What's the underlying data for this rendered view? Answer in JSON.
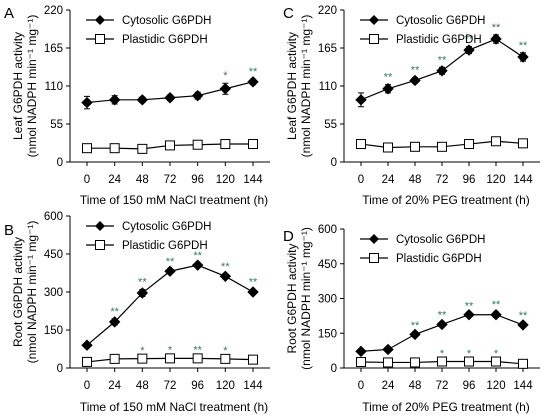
{
  "chart_data": [
    {
      "panel": "A",
      "type": "line",
      "x": [
        "0",
        "24",
        "48",
        "72",
        "96",
        "120",
        "144"
      ],
      "xlabel": "Time of 150 mM NaCl treatment (h)",
      "ylabel": [
        "Leaf G6PDH activity",
        "(nmol NADPH min⁻¹ mg⁻¹)"
      ],
      "yticks": [
        "0",
        "55",
        "110",
        "165",
        "220"
      ],
      "ylim": [
        0,
        220
      ],
      "legend_position": "top-left",
      "series": [
        {
          "name": "Cytosolic G6PDH",
          "marker": "filled-diamond",
          "values": [
            86,
            90,
            90,
            93,
            96,
            106,
            116
          ],
          "errors": [
            9,
            6,
            4,
            4,
            5,
            8,
            4
          ],
          "sig": [
            "",
            "",
            "",
            "",
            "",
            "*",
            "**"
          ]
        },
        {
          "name": "Plastidic G6PDH",
          "marker": "open-square",
          "values": [
            20,
            20,
            19,
            24,
            25,
            26,
            26
          ],
          "errors": [
            2,
            2,
            2,
            2,
            2,
            2,
            2
          ],
          "sig": [
            "",
            "",
            "",
            "",
            "",
            "",
            ""
          ]
        }
      ]
    },
    {
      "panel": "B",
      "type": "line",
      "x": [
        "0",
        "24",
        "48",
        "72",
        "96",
        "120",
        "144"
      ],
      "xlabel": "Time of 150 mM NaCl treatment (h)",
      "ylabel": [
        "Root G6PDH activity",
        "(nmol NADPH min⁻¹ mg⁻¹)"
      ],
      "yticks": [
        "0",
        "150",
        "300",
        "450",
        "600"
      ],
      "ylim": [
        0,
        600
      ],
      "legend_position": "top-left",
      "series": [
        {
          "name": "Cytosolic G6PDH",
          "marker": "filled-diamond",
          "values": [
            90,
            182,
            296,
            382,
            406,
            362,
            300
          ],
          "errors": [
            8,
            12,
            14,
            8,
            8,
            10,
            10
          ],
          "sig": [
            "",
            "**",
            "**",
            "**",
            "**",
            "**",
            "**"
          ]
        },
        {
          "name": "Plastidic G6PDH",
          "marker": "open-square",
          "values": [
            24,
            36,
            37,
            38,
            38,
            36,
            33
          ],
          "errors": [
            3,
            3,
            3,
            3,
            3,
            3,
            3
          ],
          "sig": [
            "",
            "",
            "*",
            "*",
            "**",
            "*",
            ""
          ]
        }
      ]
    },
    {
      "panel": "C",
      "type": "line",
      "x": [
        "0",
        "24",
        "48",
        "72",
        "96",
        "120",
        "144"
      ],
      "xlabel": "Time of 20% PEG treatment (h)",
      "ylabel": [
        "Leaf G6PDH activity",
        "(nmol NADPH min⁻¹ mg⁻¹)"
      ],
      "yticks": [
        "0",
        "55",
        "110",
        "165",
        "220"
      ],
      "ylim": [
        0,
        220
      ],
      "legend_position": "top-left",
      "series": [
        {
          "name": "Cytosolic G6PDH",
          "marker": "filled-diamond",
          "values": [
            90,
            106,
            118,
            132,
            162,
            178,
            152
          ],
          "errors": [
            10,
            6,
            4,
            5,
            5,
            6,
            6
          ],
          "sig": [
            "",
            "**",
            "**",
            "**",
            "**",
            "**",
            "**"
          ]
        },
        {
          "name": "Plastidic G6PDH",
          "marker": "open-square",
          "values": [
            26,
            21,
            22,
            22,
            26,
            30,
            27
          ],
          "errors": [
            3,
            2,
            2,
            2,
            2,
            3,
            3
          ],
          "sig": [
            "",
            "",
            "",
            "",
            "",
            "",
            ""
          ]
        }
      ]
    },
    {
      "panel": "D",
      "type": "line",
      "x": [
        "0",
        "24",
        "48",
        "72",
        "96",
        "120",
        "144"
      ],
      "xlabel": "Time of 20% PEG treatment (h)",
      "ylabel": [
        "Root G6PDH activity",
        "(nmol NADPH min⁻¹ mg⁻¹)"
      ],
      "yticks": [
        "0",
        "150",
        "300",
        "450",
        "600"
      ],
      "ylim": [
        0,
        600
      ],
      "legend_position": "top-left",
      "series": [
        {
          "name": "Cytosolic G6PDH",
          "marker": "filled-diamond",
          "values": [
            72,
            80,
            145,
            188,
            230,
            230,
            186
          ],
          "errors": [
            8,
            6,
            6,
            8,
            6,
            12,
            8
          ],
          "sig": [
            "",
            "",
            "**",
            "**",
            "**",
            "**",
            "**"
          ]
        },
        {
          "name": "Plastidic G6PDH",
          "marker": "open-square",
          "values": [
            26,
            24,
            24,
            28,
            28,
            28,
            18
          ],
          "errors": [
            3,
            3,
            3,
            3,
            3,
            3,
            3
          ],
          "sig": [
            "",
            "",
            "",
            "*",
            "*",
            "*",
            ""
          ]
        }
      ]
    }
  ]
}
